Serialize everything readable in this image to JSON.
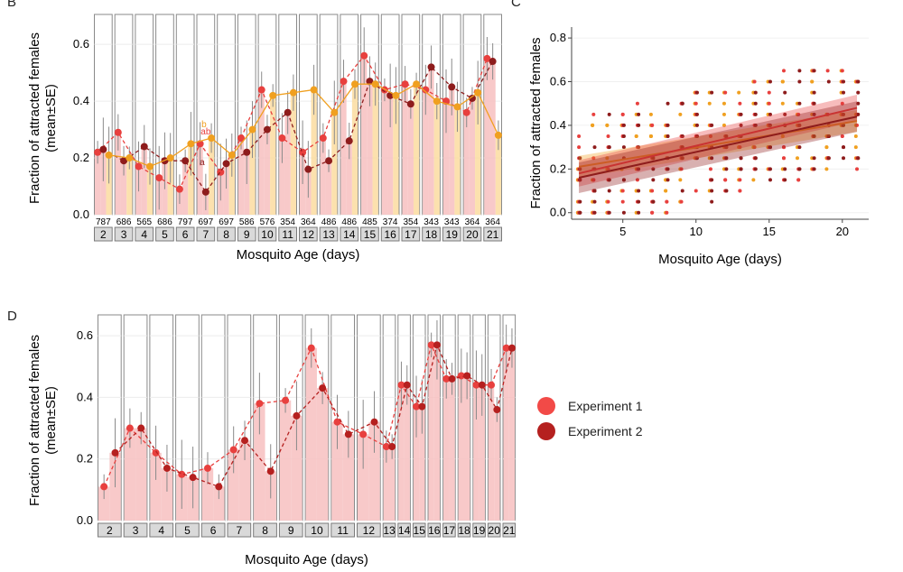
{
  "panels": {
    "b": "B",
    "c": "C",
    "d": "D"
  },
  "colors": {
    "exp1": "#e8403e",
    "exp2": "#8e1c1c",
    "exp3": "#f0a020",
    "bar_pink": "#f7c0c0",
    "bar_yellow": "#fbdca0"
  },
  "legend": [
    {
      "label": "Experiment 1",
      "color": "#f24a47"
    },
    {
      "label": "Experiment 2",
      "color": "#b5201f"
    }
  ],
  "chart_data": [
    {
      "id": "B",
      "type": "bar",
      "ylabel": "Fraction of attracted females\n(mean±SE)",
      "xlabel": "Mosquito Age (days)",
      "ylim": [
        0,
        0.68
      ],
      "yticks": [
        "0.0",
        "0.2",
        "0.4",
        "0.6"
      ],
      "categories": [
        "2",
        "3",
        "4",
        "5",
        "6",
        "7",
        "8",
        "9",
        "10",
        "11",
        "12",
        "13",
        "14",
        "15",
        "16",
        "17",
        "18",
        "19",
        "20",
        "21"
      ],
      "sample_sizes": [
        "787",
        "686",
        "565",
        "686",
        "797",
        "697",
        "697",
        "586",
        "576",
        "354",
        "364",
        "486",
        "486",
        "485",
        "374",
        "354",
        "343",
        "343",
        "364",
        "364"
      ],
      "annotations": [
        {
          "day": "7",
          "text": "b",
          "color": "#f0a020"
        },
        {
          "day": "7",
          "text": "ab",
          "color": "#e8403e"
        },
        {
          "day": "7",
          "text": "a",
          "color": "#8e1c1c"
        }
      ],
      "series": [
        {
          "name": "",
          "color": "#e8403e",
          "values": [
            0.22,
            0.29,
            0.17,
            0.13,
            0.09,
            0.25,
            0.15,
            0.27,
            0.44,
            0.27,
            0.22,
            0.27,
            0.47,
            0.56,
            0.44,
            0.46,
            0.44,
            0.4,
            0.36,
            0.55
          ]
        },
        {
          "name": "",
          "color": "#8e1c1c",
          "values": [
            0.23,
            0.19,
            0.24,
            0.19,
            0.19,
            0.08,
            0.18,
            0.22,
            0.3,
            0.36,
            0.16,
            0.19,
            0.26,
            0.47,
            0.42,
            0.39,
            0.52,
            0.45,
            0.41,
            0.54
          ]
        },
        {
          "name": "",
          "color": "#f0a020",
          "values": [
            0.21,
            0.2,
            0.17,
            0.2,
            0.25,
            0.27,
            0.21,
            0.3,
            0.42,
            0.43,
            0.44,
            0.36,
            0.46,
            0.46,
            0.42,
            0.46,
            0.4,
            0.38,
            0.43,
            0.28
          ]
        }
      ]
    },
    {
      "id": "C",
      "type": "scatter",
      "ylabel": "Fraction of attracted females",
      "xlabel": "Mosquito Age (days)",
      "xlim": [
        1.5,
        21.8
      ],
      "ylim": [
        -0.03,
        0.85
      ],
      "xticks": [
        "5",
        "10",
        "15",
        "20"
      ],
      "yticks": [
        "0.0",
        "0.2",
        "0.4",
        "0.6",
        "0.8"
      ],
      "trend_lines": [
        {
          "color": "#f0a020",
          "from": [
            2,
            0.21
          ],
          "to": [
            21,
            0.42
          ]
        },
        {
          "color": "#e8403e",
          "from": [
            2,
            0.18
          ],
          "to": [
            21,
            0.48
          ]
        },
        {
          "color": "#8e1c1c",
          "from": [
            2,
            0.16
          ],
          "to": [
            21,
            0.44
          ]
        }
      ]
    },
    {
      "id": "D",
      "type": "bar",
      "ylabel": "Fraction of attracted females\n(mean±SE)",
      "xlabel": "Mosquito Age (days)",
      "ylim": [
        0,
        0.65
      ],
      "yticks": [
        "0.0",
        "0.2",
        "0.4",
        "0.6"
      ],
      "categories": [
        "2",
        "3",
        "4",
        "5",
        "6",
        "7",
        "8",
        "9",
        "10",
        "11",
        "12",
        "13",
        "14",
        "15",
        "16",
        "17",
        "18",
        "19",
        "20",
        "21"
      ],
      "series": [
        {
          "name": "Experiment 1",
          "color": "#e8403e",
          "values": [
            0.11,
            0.3,
            0.22,
            0.15,
            0.17,
            0.23,
            0.38,
            0.39,
            0.56,
            0.32,
            0.28,
            0.24,
            0.44,
            0.37,
            0.57,
            0.46,
            0.47,
            0.44,
            0.44,
            0.56
          ]
        },
        {
          "name": "Experiment 2",
          "color": "#b5201f",
          "values": [
            0.22,
            0.3,
            0.17,
            0.14,
            0.11,
            0.26,
            0.16,
            0.34,
            0.43,
            0.28,
            0.32,
            0.24,
            0.44,
            0.37,
            0.57,
            0.46,
            0.47,
            0.44,
            0.36,
            0.56
          ]
        }
      ]
    }
  ]
}
